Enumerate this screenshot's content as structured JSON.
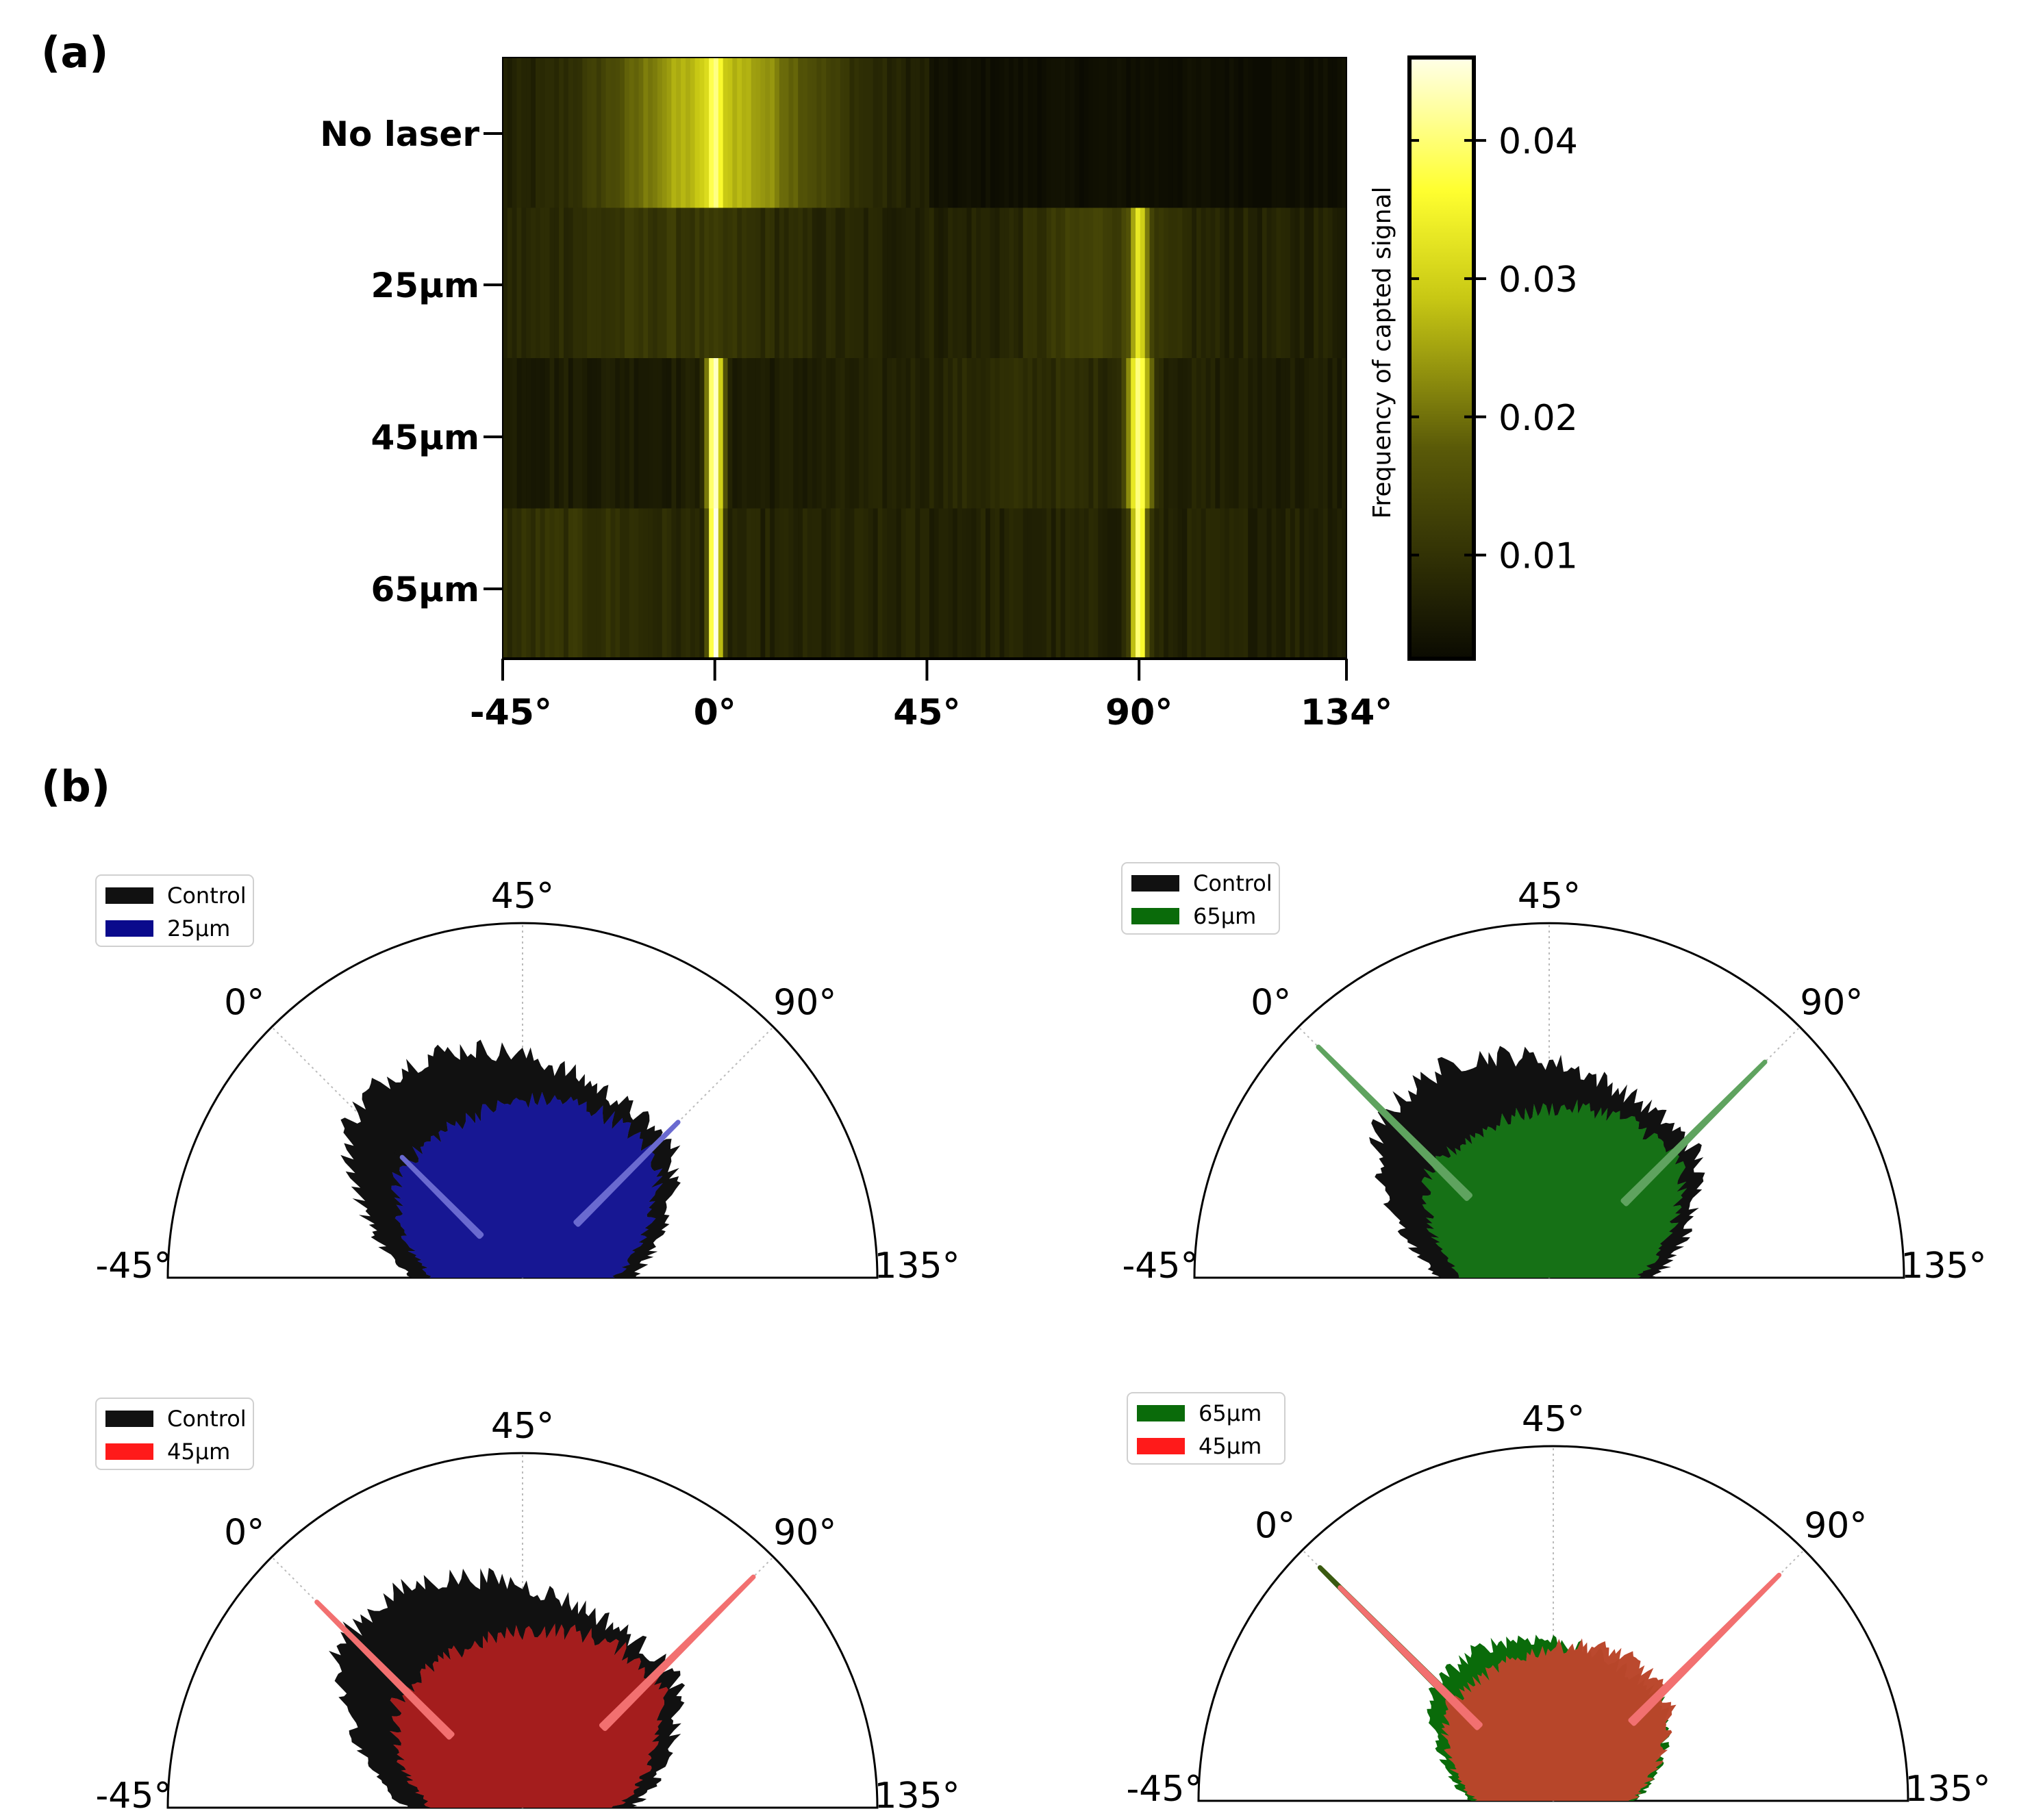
{
  "panel_a_label": "(a)",
  "panel_b_label": "(b)",
  "colors": {
    "heat_dark": "#0b0b02",
    "heat_mid": "#8c8c10",
    "heat_bright": "#ffff30",
    "heat_white": "#ffffe8",
    "control": "#111111",
    "blue_25": "#0a0a8c",
    "green_65": "#0a6b0a",
    "red_45": "#ff1a1a",
    "blue_25_light": "#6a6ad0",
    "green_65_light": "#5fa35f",
    "red_45_light": "#f27070"
  },
  "chart_data": [
    {
      "type": "heatmap",
      "rows": [
        "No laser",
        "25µm",
        "45µm",
        "65µm"
      ],
      "x_ticks": [
        "-45°",
        "0°",
        "45°",
        "90°",
        "134°"
      ],
      "x_tick_values": [
        -45,
        0,
        45,
        90,
        134
      ],
      "xlim": [
        -45,
        134
      ],
      "colorbar": {
        "label": "Frequency of capted signal",
        "ticks": [
          "0.04",
          "0.03",
          "0.02",
          "0.01"
        ],
        "tick_values": [
          0.04,
          0.03,
          0.02,
          0.01
        ],
        "range": [
          0.0025,
          0.046
        ]
      },
      "profiles": [
        {
          "row": "No laser",
          "baseline": 0.006,
          "peaks": [
            {
              "x": 0,
              "height": 0.022,
              "width": 16
            },
            {
              "x": 0,
              "height": 0.012,
              "width": 1.2
            }
          ],
          "darkening_after": 45
        },
        {
          "row": "25µm",
          "baseline": 0.007,
          "peaks": [
            {
              "x": 90,
              "height": 0.024,
              "width": 1.2
            },
            {
              "x": 82,
              "height": 0.006,
              "width": 10
            },
            {
              "x": -10,
              "height": 0.004,
              "width": 18
            }
          ]
        },
        {
          "row": "45µm",
          "baseline": 0.006,
          "peaks": [
            {
              "x": 0,
              "height": 0.038,
              "width": 1.3
            },
            {
              "x": 90,
              "height": 0.032,
              "width": 1.8
            },
            {
              "x": 70,
              "height": 0.003,
              "width": 20
            }
          ]
        },
        {
          "row": "65µm",
          "baseline": 0.007,
          "peaks": [
            {
              "x": 0,
              "height": 0.04,
              "width": 1.0
            },
            {
              "x": 90,
              "height": 0.034,
              "width": 1.2
            },
            {
              "x": -30,
              "height": 0.003,
              "width": 15
            }
          ]
        }
      ]
    },
    {
      "type": "polar_histogram",
      "theta_ticks": [
        "-45°",
        "0°",
        "45°",
        "90°",
        "135°"
      ],
      "theta_tick_values": [
        -45,
        0,
        45,
        90,
        135
      ],
      "theta_range": [
        -45,
        135
      ],
      "subplots": [
        {
          "legend": [
            {
              "label": "Control",
              "color": "#111111"
            },
            {
              "label": "25µm",
              "color": "#0a0a8c"
            }
          ],
          "series": [
            {
              "name": "Control",
              "base": 0.56,
              "bump_center": 15,
              "bump_height": 0.13,
              "bump_width": 28,
              "spikes": [
                {
                  "angle": 0,
                  "r": 0.5
                }
              ]
            },
            {
              "name": "25µm",
              "base": 0.46,
              "bump_center": 70,
              "bump_height": 0.06,
              "bump_width": 30,
              "spikes": [
                {
                  "angle": 0,
                  "r": 0.48
                },
                {
                  "angle": 90,
                  "r": 0.62
                }
              ]
            }
          ]
        },
        {
          "legend": [
            {
              "label": "Control",
              "color": "#111111"
            },
            {
              "label": "65µm",
              "color": "#0a6b0a"
            }
          ],
          "series": [
            {
              "name": "Control",
              "base": 0.55,
              "bump_center": 15,
              "bump_height": 0.12,
              "bump_width": 28,
              "spikes": []
            },
            {
              "name": "65µm",
              "base": 0.45,
              "bump_center": 75,
              "bump_height": 0.05,
              "bump_width": 30,
              "spikes": [
                {
                  "angle": 0,
                  "r": 0.92
                },
                {
                  "angle": 90,
                  "r": 0.86
                }
              ]
            }
          ]
        },
        {
          "legend": [
            {
              "label": "Control",
              "color": "#111111"
            },
            {
              "label": "45µm",
              "color": "#ff1a1a"
            }
          ],
          "series": [
            {
              "name": "Control",
              "base": 0.57,
              "bump_center": 10,
              "bump_height": 0.14,
              "bump_width": 28,
              "spikes": []
            },
            {
              "name": "45µm",
              "base": 0.47,
              "bump_center": 80,
              "bump_height": 0.06,
              "bump_width": 30,
              "spikes": [
                {
                  "angle": 0,
                  "r": 0.82
                },
                {
                  "angle": 90,
                  "r": 0.92
                }
              ]
            }
          ]
        },
        {
          "legend": [
            {
              "label": "65µm",
              "color": "#0a6b0a"
            },
            {
              "label": "45µm",
              "color": "#ff1a1a"
            }
          ],
          "series": [
            {
              "name": "65µm",
              "base": 0.42,
              "bump_center": 20,
              "bump_height": 0.06,
              "bump_width": 25,
              "spikes": [
                {
                  "angle": 0,
                  "r": 0.93
                },
                {
                  "angle": 90,
                  "r": 0.86
                }
              ]
            },
            {
              "name": "45µm",
              "base": 0.4,
              "bump_center": 70,
              "bump_height": 0.06,
              "bump_width": 25,
              "spikes": [
                {
                  "angle": 0,
                  "r": 0.85
                },
                {
                  "angle": 90,
                  "r": 0.9
                }
              ]
            }
          ]
        }
      ]
    }
  ]
}
